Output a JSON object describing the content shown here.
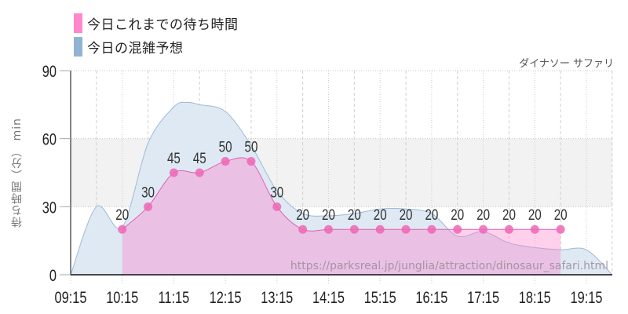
{
  "legend": {
    "items": [
      {
        "label": "今日これまでの待ち時間",
        "color": "#ff88cc"
      },
      {
        "label": "今日の混雑予想",
        "color": "#92b4d4"
      }
    ]
  },
  "subtitle": "ダイナソー サファリ",
  "watermark": "https://parksreal.jp/junglia/attraction/dinosaur_safari.html",
  "chart_data": {
    "type": "area",
    "title": "ダイナソー サファリ",
    "xlabel": "",
    "ylabel": "待ち時間（分） min",
    "ylim": [
      0,
      90
    ],
    "yticks": [
      0,
      30,
      60,
      90
    ],
    "xticks": [
      "09:15",
      "10:15",
      "11:15",
      "12:15",
      "13:15",
      "14:15",
      "15:15",
      "16:15",
      "17:15",
      "18:15",
      "19:15"
    ],
    "grid": true,
    "highlight_band": [
      30,
      60
    ],
    "legend_position": "top-left",
    "series": [
      {
        "name": "今日これまでの待ち時間",
        "color": "#ee66b4",
        "x": [
          "10:15",
          "10:45",
          "11:15",
          "11:45",
          "12:15",
          "12:45",
          "13:15",
          "13:45",
          "14:15",
          "14:45",
          "15:15",
          "15:45",
          "16:15",
          "16:45",
          "17:15",
          "17:45",
          "18:15",
          "18:45"
        ],
        "values": [
          20,
          30,
          45,
          45,
          50,
          50,
          30,
          20,
          20,
          20,
          20,
          20,
          20,
          20,
          20,
          20,
          20,
          20
        ]
      },
      {
        "name": "今日の混雑予想",
        "color": "#92b4d4",
        "x": [
          "09:15",
          "09:45",
          "10:15",
          "10:45",
          "11:15",
          "11:30",
          "11:45",
          "12:15",
          "12:45",
          "13:15",
          "13:45",
          "14:15",
          "14:45",
          "15:15",
          "15:45",
          "16:15",
          "16:45",
          "17:15",
          "17:45",
          "18:15",
          "18:45",
          "19:15",
          "19:45"
        ],
        "values": [
          0,
          30,
          21,
          58,
          74,
          76,
          75,
          72,
          57,
          37,
          27,
          26,
          27,
          29,
          29,
          27,
          17,
          19,
          14,
          12,
          11,
          11,
          0
        ]
      }
    ]
  }
}
